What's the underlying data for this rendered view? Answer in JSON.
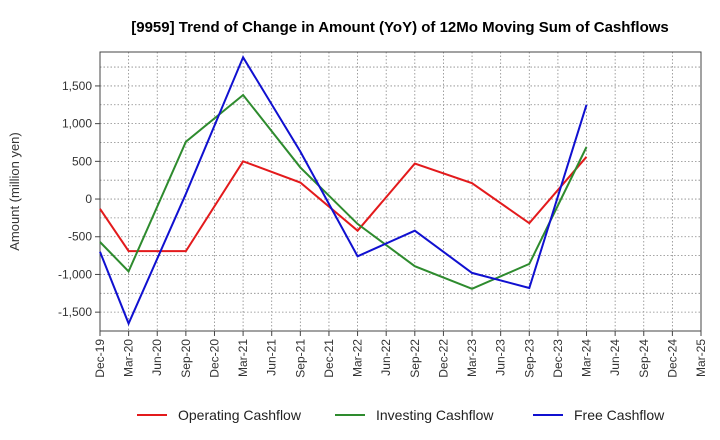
{
  "chart_data": {
    "type": "line",
    "title": "[9959]  Trend of Change in Amount (YoY) of 12Mo Moving Sum of Cashflows",
    "xlabel": "",
    "ylabel": "Amount (million yen)",
    "categories": [
      "Dec-19",
      "Mar-20",
      "Jun-20",
      "Sep-20",
      "Dec-20",
      "Mar-21",
      "Jun-21",
      "Sep-21",
      "Dec-21",
      "Mar-22",
      "Jun-22",
      "Sep-22",
      "Dec-22",
      "Mar-23",
      "Jun-23",
      "Sep-23",
      "Dec-23",
      "Mar-24",
      "Jun-24",
      "Sep-24",
      "Dec-24",
      "Mar-25"
    ],
    "ylim": [
      -1750,
      1950
    ],
    "yticks": [
      -1500,
      -1000,
      -500,
      0,
      500,
      1000,
      1500
    ],
    "ytick_labels": [
      "-1,500",
      "-1,000",
      "-500",
      "0",
      "500",
      "1,000",
      "1,500"
    ],
    "grid": true,
    "legend_position": "bottom",
    "series": [
      {
        "name": "Operating Cashflow",
        "color": "#e31a1c",
        "values": [
          -130,
          -690,
          null,
          -690,
          null,
          500,
          null,
          220,
          null,
          -420,
          null,
          470,
          null,
          210,
          null,
          -320,
          null,
          560,
          null,
          null,
          null,
          null
        ]
      },
      {
        "name": "Investing Cashflow",
        "color": "#2e8b2e",
        "values": [
          -570,
          -960,
          null,
          760,
          null,
          1380,
          null,
          420,
          null,
          -330,
          null,
          -890,
          null,
          -1190,
          null,
          -860,
          null,
          690,
          null,
          null,
          null,
          null
        ]
      },
      {
        "name": "Free Cashflow",
        "color": "#1010d0",
        "values": [
          -700,
          -1650,
          null,
          70,
          null,
          1880,
          null,
          630,
          null,
          -760,
          null,
          -420,
          null,
          -980,
          null,
          -1180,
          null,
          1250,
          null,
          null,
          null,
          null
        ]
      }
    ]
  }
}
